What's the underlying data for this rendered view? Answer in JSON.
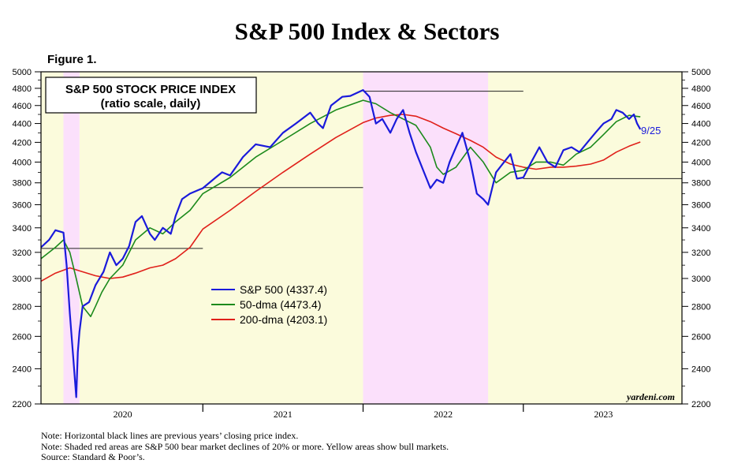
{
  "title": "S&P 500 Index & Sectors",
  "figure_label": "Figure 1.",
  "notes": [
    "Note: Horizontal black lines are previous years’ closing price index.",
    "Note: Shaded red areas are S&P 500 bear market declines of 20% or more. Yellow areas show bull markets.",
    "Source: Standard & Poor’s."
  ],
  "chart_data": {
    "type": "line",
    "title": "S&P 500 STOCK PRICE INDEX",
    "subtitle": "(ratio scale, daily)",
    "scale": "log",
    "ylim": [
      2200,
      5000
    ],
    "xlim": [
      2019.99,
      2023.99
    ],
    "y_ticks": [
      2200,
      2400,
      2600,
      2800,
      3000,
      3200,
      3400,
      3600,
      3800,
      4000,
      4200,
      4400,
      4600,
      4800,
      5000
    ],
    "x_tick_labels": [
      {
        "label": "2020",
        "x": 2020.5
      },
      {
        "label": "2021",
        "x": 2021.5
      },
      {
        "label": "2022",
        "x": 2022.5
      },
      {
        "label": "2023",
        "x": 2023.5
      }
    ],
    "legend": [
      {
        "label": "S&P 500 (4337.4)",
        "color": "#1a1adb"
      },
      {
        "label": "50-dma (4473.4)",
        "color": "#1c8a1c"
      },
      {
        "label": "200-dma (4203.1)",
        "color": "#e0201a"
      }
    ],
    "date_annotation": "9/25",
    "watermark": "yardeni.com",
    "shading": {
      "bear_color": "#fbe0fb",
      "bull_color": "#fbfbdc",
      "bear_periods": [
        [
          2020.13,
          2020.23
        ],
        [
          2022.0,
          2022.78
        ]
      ],
      "bull_periods": [
        [
          2019.99,
          2020.13
        ],
        [
          2020.23,
          2022.0
        ],
        [
          2022.78,
          2023.99
        ]
      ]
    },
    "previous_year_closes": [
      {
        "value": 3231,
        "from": 2019.99,
        "to": 2021.0
      },
      {
        "value": 3756,
        "from": 2021.0,
        "to": 2022.0
      },
      {
        "value": 4766,
        "from": 2022.0,
        "to": 2023.0
      },
      {
        "value": 3840,
        "from": 2023.0,
        "to": 2023.99
      }
    ],
    "series": [
      {
        "name": "S&P 500",
        "color": "#1a1adb",
        "x": [
          2019.99,
          2020.04,
          2020.08,
          2020.13,
          2020.15,
          2020.17,
          2020.19,
          2020.21,
          2020.22,
          2020.23,
          2020.25,
          2020.29,
          2020.33,
          2020.38,
          2020.42,
          2020.46,
          2020.5,
          2020.54,
          2020.58,
          2020.62,
          2020.67,
          2020.7,
          2020.75,
          2020.8,
          2020.83,
          2020.87,
          2020.92,
          2021.0,
          2021.08,
          2021.12,
          2021.17,
          2021.25,
          2021.33,
          2021.42,
          2021.5,
          2021.58,
          2021.67,
          2021.72,
          2021.75,
          2021.8,
          2021.87,
          2021.92,
          2022.0,
          2022.04,
          2022.08,
          2022.12,
          2022.17,
          2022.21,
          2022.25,
          2022.29,
          2022.33,
          2022.38,
          2022.42,
          2022.46,
          2022.5,
          2022.54,
          2022.58,
          2022.62,
          2022.67,
          2022.71,
          2022.75,
          2022.78,
          2022.83,
          2022.88,
          2022.92,
          2022.96,
          2023.0,
          2023.05,
          2023.1,
          2023.15,
          2023.2,
          2023.25,
          2023.3,
          2023.35,
          2023.4,
          2023.45,
          2023.5,
          2023.55,
          2023.58,
          2023.62,
          2023.66,
          2023.69,
          2023.71,
          2023.73
        ],
        "values": [
          3240,
          3300,
          3380,
          3360,
          3100,
          2750,
          2480,
          2237,
          2500,
          2630,
          2800,
          2830,
          2950,
          3050,
          3200,
          3100,
          3150,
          3250,
          3450,
          3500,
          3350,
          3300,
          3400,
          3350,
          3500,
          3650,
          3700,
          3750,
          3850,
          3900,
          3870,
          4050,
          4180,
          4150,
          4300,
          4400,
          4520,
          4400,
          4350,
          4600,
          4700,
          4710,
          4780,
          4700,
          4400,
          4450,
          4300,
          4450,
          4550,
          4300,
          4100,
          3900,
          3750,
          3830,
          3800,
          4000,
          4150,
          4300,
          4000,
          3700,
          3650,
          3600,
          3900,
          4000,
          4080,
          3840,
          3850,
          4000,
          4150,
          4000,
          3950,
          4120,
          4150,
          4100,
          4200,
          4300,
          4400,
          4450,
          4550,
          4520,
          4450,
          4500,
          4400,
          4337.4
        ]
      },
      {
        "name": "50-dma",
        "color": "#1c8a1c",
        "x": [
          2019.99,
          2020.08,
          2020.13,
          2020.17,
          2020.21,
          2020.25,
          2020.3,
          2020.33,
          2020.37,
          2020.42,
          2020.5,
          2020.58,
          2020.67,
          2020.75,
          2020.83,
          2020.92,
          2021.0,
          2021.17,
          2021.33,
          2021.5,
          2021.67,
          2021.83,
          2022.0,
          2022.08,
          2022.17,
          2022.25,
          2022.33,
          2022.42,
          2022.46,
          2022.5,
          2022.58,
          2022.67,
          2022.75,
          2022.83,
          2022.92,
          2023.0,
          2023.08,
          2023.17,
          2023.25,
          2023.33,
          2023.42,
          2023.5,
          2023.58,
          2023.66,
          2023.73
        ],
        "values": [
          3150,
          3240,
          3300,
          3200,
          3000,
          2800,
          2730,
          2800,
          2900,
          3000,
          3100,
          3300,
          3400,
          3350,
          3450,
          3550,
          3700,
          3850,
          4050,
          4220,
          4400,
          4550,
          4660,
          4620,
          4520,
          4450,
          4380,
          4150,
          3950,
          3880,
          3950,
          4150,
          4000,
          3800,
          3900,
          3920,
          4000,
          4000,
          3970,
          4080,
          4150,
          4280,
          4420,
          4490,
          4473.4
        ]
      },
      {
        "name": "200-dma",
        "color": "#e0201a",
        "x": [
          2019.99,
          2020.08,
          2020.17,
          2020.25,
          2020.33,
          2020.42,
          2020.5,
          2020.58,
          2020.67,
          2020.75,
          2020.83,
          2020.92,
          2021.0,
          2021.17,
          2021.33,
          2021.5,
          2021.67,
          2021.83,
          2022.0,
          2022.08,
          2022.17,
          2022.25,
          2022.33,
          2022.42,
          2022.5,
          2022.58,
          2022.67,
          2022.75,
          2022.83,
          2022.92,
          2023.0,
          2023.08,
          2023.17,
          2023.25,
          2023.33,
          2023.42,
          2023.5,
          2023.58,
          2023.66,
          2023.73
        ],
        "values": [
          2980,
          3040,
          3080,
          3050,
          3020,
          3000,
          3010,
          3040,
          3080,
          3100,
          3150,
          3240,
          3390,
          3550,
          3720,
          3900,
          4080,
          4250,
          4410,
          4460,
          4490,
          4500,
          4480,
          4420,
          4350,
          4290,
          4220,
          4150,
          4050,
          3980,
          3950,
          3930,
          3950,
          3950,
          3960,
          3980,
          4020,
          4100,
          4160,
          4203.1
        ]
      }
    ]
  }
}
